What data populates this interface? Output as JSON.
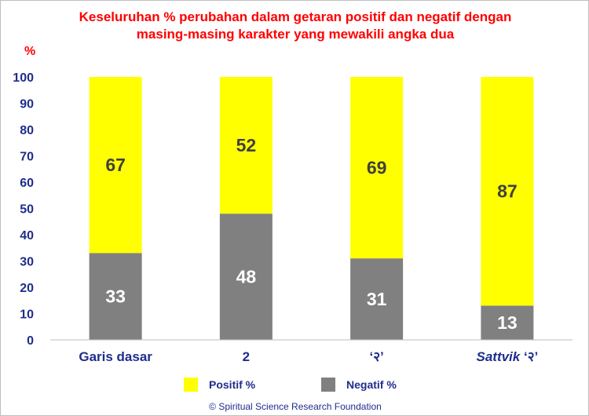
{
  "colors": {
    "positive": "#ffff00",
    "negative": "#808080",
    "positive_label": "#404040",
    "negative_label": "#ffffff",
    "title": "#ff0000",
    "axis_text": "#1f2d8c",
    "axis_line": "#bfbfbf"
  },
  "legend_labels": {
    "positive": "Positif %",
    "negative": "Negatif %"
  },
  "copyright": "© Spiritual Science Research Foundation",
  "chart_data": {
    "type": "bar",
    "stacked": true,
    "title_lines": [
      "Keseluruhan % perubahan dalam getaran positif dan negatif dengan",
      "masing-masing karakter yang mewakili angka dua"
    ],
    "unit": "%",
    "categories": [
      "Garis dasar",
      "2",
      "‘२’",
      "‘२’"
    ],
    "category_prefix": [
      "",
      "",
      "",
      "Sattvik"
    ],
    "series": [
      {
        "name": "Negatif %",
        "values": [
          33,
          48,
          31,
          13
        ]
      },
      {
        "name": "Positif %",
        "values": [
          67,
          52,
          69,
          87
        ]
      }
    ],
    "ylim": [
      0,
      100
    ],
    "yticks": [
      0,
      10,
      20,
      30,
      40,
      50,
      60,
      70,
      80,
      90,
      100
    ],
    "grid": false,
    "legend_position": "bottom"
  }
}
